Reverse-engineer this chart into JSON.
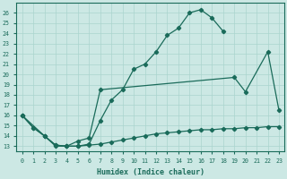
{
  "xlabel": "Humidex (Indice chaleur)",
  "ylabel": "",
  "xlim": [
    -0.5,
    23.5
  ],
  "ylim": [
    12.5,
    27
  ],
  "bg_color": "#cce8e4",
  "line_color": "#1a6b5a",
  "grid_color": "#aad4ce",
  "curve1_x": [
    0,
    1,
    2,
    3,
    4,
    5,
    6,
    7,
    8,
    9,
    10,
    11,
    12,
    13,
    14,
    15,
    16,
    17,
    18
  ],
  "curve1_y": [
    16.0,
    14.8,
    14.0,
    13.1,
    13.0,
    13.0,
    13.2,
    15.5,
    17.5,
    18.5,
    20.5,
    21.0,
    22.2,
    23.8,
    24.5,
    26.0,
    26.3,
    25.5,
    24.2
  ],
  "curve2_x": [
    0,
    2,
    3,
    4,
    5,
    6,
    7,
    19,
    20,
    22,
    23
  ],
  "curve2_y": [
    16.0,
    14.0,
    13.1,
    13.0,
    13.5,
    13.8,
    18.5,
    19.7,
    18.3,
    22.2,
    16.5
  ],
  "curve3_x": [
    0,
    1,
    2,
    3,
    4,
    5,
    6,
    7,
    8,
    9,
    10,
    11,
    12,
    13,
    14,
    15,
    16,
    17,
    18,
    19,
    20,
    21,
    22,
    23
  ],
  "curve3_y": [
    16.0,
    14.8,
    14.0,
    13.0,
    13.0,
    13.0,
    13.1,
    13.2,
    13.4,
    13.6,
    13.8,
    14.0,
    14.2,
    14.3,
    14.4,
    14.5,
    14.6,
    14.6,
    14.7,
    14.7,
    14.8,
    14.8,
    14.9,
    14.9
  ],
  "xticks": [
    0,
    1,
    2,
    3,
    4,
    5,
    6,
    7,
    8,
    9,
    10,
    11,
    12,
    13,
    14,
    15,
    16,
    17,
    18,
    19,
    20,
    21,
    22,
    23
  ],
  "yticks": [
    13,
    14,
    15,
    16,
    17,
    18,
    19,
    20,
    21,
    22,
    23,
    24,
    25,
    26
  ]
}
